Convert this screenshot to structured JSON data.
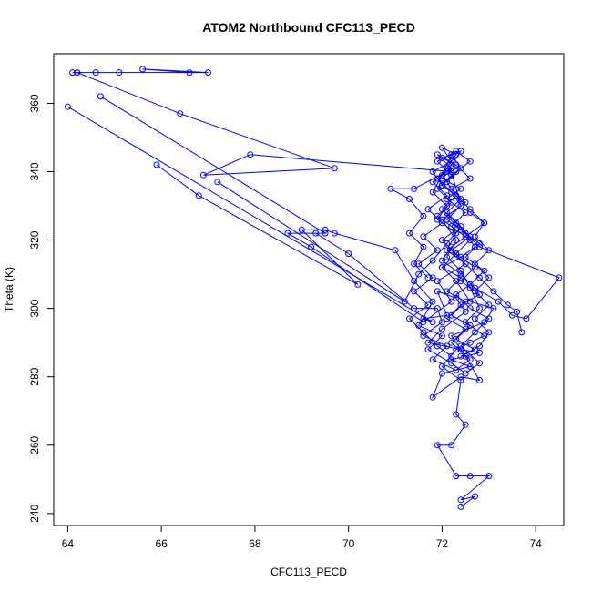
{
  "chart_data": {
    "type": "line",
    "title": "ATOM2 Northbound CFC113_PECD",
    "xlabel": "CFC113_PECD",
    "ylabel": "Theta (K)",
    "xlim": [
      63.7,
      74.6
    ],
    "ylim": [
      236.5,
      374.5
    ],
    "xticks": [
      64,
      66,
      68,
      70,
      72,
      74
    ],
    "yticks": [
      240,
      260,
      280,
      300,
      320,
      340,
      360
    ],
    "grid": false,
    "legend": "none",
    "marker": "open-circle",
    "color": "#0000ff",
    "series": [
      {
        "points": [
          [
            64.0,
            359
          ],
          [
            71.8,
            296
          ],
          [
            71.6,
            297
          ],
          [
            72.1,
            298
          ],
          [
            71.9,
            305
          ],
          [
            72.3,
            303
          ],
          [
            72.5,
            299
          ],
          [
            72.0,
            294
          ],
          [
            71.7,
            290
          ],
          [
            72.4,
            288
          ],
          [
            72.8,
            287
          ],
          [
            72.2,
            285
          ],
          [
            72.6,
            283
          ],
          [
            72.0,
            281
          ],
          [
            71.8,
            274
          ],
          [
            72.4,
            280
          ],
          [
            72.8,
            279
          ],
          [
            72.5,
            286
          ],
          [
            72.2,
            292
          ],
          [
            72.9,
            296
          ],
          [
            73.1,
            300
          ],
          [
            72.6,
            302
          ],
          [
            72.3,
            308
          ],
          [
            72.0,
            312
          ],
          [
            72.4,
            315
          ],
          [
            72.7,
            318
          ],
          [
            72.5,
            322
          ],
          [
            72.1,
            326
          ],
          [
            72.4,
            330
          ],
          [
            72.2,
            334
          ],
          [
            71.9,
            338
          ],
          [
            72.1,
            341
          ],
          [
            72.3,
            345
          ],
          [
            72.0,
            347
          ],
          [
            72.2,
            343
          ],
          [
            71.8,
            340
          ],
          [
            72.0,
            336
          ],
          [
            72.3,
            333
          ],
          [
            72.6,
            329
          ],
          [
            72.9,
            325
          ],
          [
            72.5,
            321
          ],
          [
            72.2,
            318
          ],
          [
            72.0,
            314
          ],
          [
            72.4,
            310
          ],
          [
            72.7,
            306
          ],
          [
            73.2,
            302
          ],
          [
            73.5,
            298
          ],
          [
            73.8,
            297
          ],
          [
            74.5,
            309
          ],
          [
            72.8,
            318
          ],
          [
            72.5,
            322
          ]
        ]
      },
      {
        "points": [
          [
            64.1,
            369
          ],
          [
            66.6,
            369
          ],
          [
            65.6,
            370
          ],
          [
            67.0,
            369
          ],
          [
            64.2,
            369
          ],
          [
            65.1,
            369
          ],
          [
            64.6,
            369
          ]
        ]
      },
      {
        "points": [
          [
            64.2,
            369
          ],
          [
            66.4,
            357
          ],
          [
            69.7,
            341
          ],
          [
            66.9,
            339
          ],
          [
            67.9,
            345
          ],
          [
            72.2,
            340
          ],
          [
            72.4,
            330
          ],
          [
            72.0,
            326
          ],
          [
            72.3,
            320
          ],
          [
            72.1,
            315
          ],
          [
            72.4,
            311
          ],
          [
            72.6,
            306
          ],
          [
            72.8,
            300
          ],
          [
            72.5,
            296
          ],
          [
            72.9,
            292
          ],
          [
            72.6,
            290
          ],
          [
            72.3,
            288
          ],
          [
            72.0,
            283
          ],
          [
            72.4,
            279
          ],
          [
            72.3,
            269
          ],
          [
            72.5,
            266
          ],
          [
            72.2,
            260
          ],
          [
            71.9,
            260
          ],
          [
            72.3,
            251
          ],
          [
            72.6,
            251
          ],
          [
            73.0,
            251
          ],
          [
            72.4,
            244
          ],
          [
            72.7,
            245
          ],
          [
            72.4,
            242
          ]
        ]
      },
      {
        "points": [
          [
            64.7,
            362
          ],
          [
            69.5,
            322
          ],
          [
            68.7,
            322
          ],
          [
            69.2,
            318
          ],
          [
            71.6,
            296
          ],
          [
            72.2,
            302
          ],
          [
            71.9,
            308
          ],
          [
            72.5,
            313
          ],
          [
            72.2,
            317
          ],
          [
            72.6,
            321
          ],
          [
            72.3,
            325
          ],
          [
            72.0,
            329
          ],
          [
            72.3,
            333
          ],
          [
            72.1,
            337
          ],
          [
            72.4,
            341
          ],
          [
            72.2,
            345
          ],
          [
            72.0,
            339
          ],
          [
            71.8,
            334
          ],
          [
            72.1,
            330
          ],
          [
            71.9,
            326
          ],
          [
            72.3,
            322
          ],
          [
            72.1,
            317
          ],
          [
            72.5,
            313
          ],
          [
            72.8,
            309
          ],
          [
            73.1,
            305
          ],
          [
            73.4,
            301
          ],
          [
            73.6,
            299
          ],
          [
            73.7,
            293
          ]
        ]
      },
      {
        "points": [
          [
            65.9,
            342
          ],
          [
            66.8,
            333
          ],
          [
            70.2,
            307
          ],
          [
            69.0,
            323
          ],
          [
            69.5,
            323
          ],
          [
            69.7,
            322
          ],
          [
            71.0,
            317
          ],
          [
            71.4,
            308
          ],
          [
            71.8,
            302
          ],
          [
            71.5,
            295
          ],
          [
            72.0,
            292
          ],
          [
            71.7,
            288
          ],
          [
            72.2,
            284
          ],
          [
            72.5,
            281
          ],
          [
            72.8,
            284
          ],
          [
            72.4,
            289
          ],
          [
            72.7,
            293
          ],
          [
            73.0,
            297
          ],
          [
            72.6,
            300
          ],
          [
            72.3,
            304
          ],
          [
            72.6,
            307
          ],
          [
            72.9,
            311
          ],
          [
            72.5,
            315
          ],
          [
            72.8,
            319
          ],
          [
            72.4,
            323
          ],
          [
            72.1,
            327
          ],
          [
            72.5,
            331
          ],
          [
            72.2,
            335
          ],
          [
            72.6,
            338
          ],
          [
            72.3,
            342
          ],
          [
            72.0,
            344
          ],
          [
            72.4,
            346
          ],
          [
            72.1,
            340
          ],
          [
            71.4,
            335
          ],
          [
            70.9,
            335
          ],
          [
            71.3,
            332
          ],
          [
            71.6,
            327
          ],
          [
            71.3,
            322
          ],
          [
            71.6,
            318
          ],
          [
            71.4,
            313
          ],
          [
            71.7,
            309
          ]
        ]
      },
      {
        "points": [
          [
            67.2,
            337
          ],
          [
            71.2,
            302
          ],
          [
            71.5,
            310
          ],
          [
            71.8,
            314
          ],
          [
            72.1,
            319
          ],
          [
            72.4,
            324
          ],
          [
            72.1,
            328
          ],
          [
            72.4,
            332
          ],
          [
            72.0,
            336
          ],
          [
            72.3,
            340
          ],
          [
            72.6,
            343
          ],
          [
            72.3,
            346
          ],
          [
            71.9,
            343
          ],
          [
            72.2,
            339
          ],
          [
            71.9,
            335
          ],
          [
            72.2,
            331
          ],
          [
            71.9,
            327
          ],
          [
            72.3,
            323
          ],
          [
            72.0,
            320
          ],
          [
            72.3,
            316
          ],
          [
            72.0,
            312
          ],
          [
            72.4,
            309
          ],
          [
            72.1,
            305
          ],
          [
            72.5,
            302
          ],
          [
            72.2,
            298
          ],
          [
            72.6,
            295
          ],
          [
            72.3,
            291
          ],
          [
            72.7,
            288
          ],
          [
            72.4,
            286
          ],
          [
            72.8,
            289
          ],
          [
            73.0,
            293
          ],
          [
            72.7,
            297
          ],
          [
            73.0,
            301
          ],
          [
            72.7,
            305
          ],
          [
            73.0,
            309
          ],
          [
            72.7,
            313
          ],
          [
            73.0,
            317
          ],
          [
            72.7,
            321
          ],
          [
            72.9,
            325
          ],
          [
            72.6,
            328
          ]
        ]
      },
      {
        "points": [
          [
            69.3,
            322
          ],
          [
            70.0,
            316
          ],
          [
            71.4,
            300
          ],
          [
            71.9,
            300
          ],
          [
            72.0,
            296
          ],
          [
            71.6,
            292
          ],
          [
            72.1,
            289
          ],
          [
            71.8,
            285
          ],
          [
            72.3,
            282
          ],
          [
            72.6,
            285
          ],
          [
            72.2,
            290
          ],
          [
            72.5,
            294
          ],
          [
            72.1,
            297
          ],
          [
            72.4,
            301
          ],
          [
            72.8,
            304
          ],
          [
            72.4,
            308
          ],
          [
            72.7,
            312
          ],
          [
            72.3,
            316
          ],
          [
            72.6,
            320
          ],
          [
            72.2,
            324
          ],
          [
            72.5,
            328
          ],
          [
            72.1,
            332
          ],
          [
            72.4,
            335
          ],
          [
            72.0,
            338
          ],
          [
            72.3,
            342
          ],
          [
            71.9,
            345
          ],
          [
            72.2,
            341
          ],
          [
            71.8,
            337
          ],
          [
            72.1,
            333
          ],
          [
            71.7,
            329
          ],
          [
            72.0,
            325
          ],
          [
            71.6,
            321
          ],
          [
            71.9,
            317
          ],
          [
            71.5,
            313
          ],
          [
            71.8,
            309
          ],
          [
            71.4,
            305
          ],
          [
            71.7,
            301
          ],
          [
            71.3,
            297
          ],
          [
            71.6,
            293
          ],
          [
            71.9,
            289
          ],
          [
            72.2,
            286
          ]
        ]
      }
    ]
  }
}
